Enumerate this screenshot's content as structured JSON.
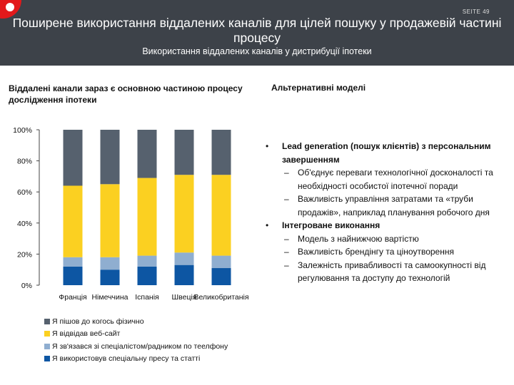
{
  "header": {
    "page_label": "SEITE 49",
    "title": "Поширене використання віддалених каналів для цілей пошуку у продажевій частині процесу",
    "subtitle": "Використання віддалених каналів у дистрибуції іпотеки"
  },
  "left_heading": "Віддалені канали зараз є основною частиною процесу дослідження іпотеки",
  "right_heading": "Альтернативні моделі",
  "colors": {
    "header_bg": "#3d4249",
    "logo": "#e2191b",
    "physical": "#56616e",
    "website": "#fbd021",
    "phone": "#8faed0",
    "press": "#0d56a3"
  },
  "chart_data": {
    "type": "bar",
    "stacked": true,
    "categories": [
      "Франція",
      "Німеччина",
      "Іспанія",
      "Швеція",
      "Великобританія"
    ],
    "yticks": [
      "0%",
      "20%",
      "40%",
      "60%",
      "80%",
      "100%"
    ],
    "ylim": [
      0,
      100
    ],
    "grid": false,
    "legend_position": "bottom-left",
    "series": [
      {
        "name": "Я використовув спеціальну пресу та статті",
        "color": "#0d56a3",
        "values": [
          12,
          10,
          12,
          13,
          11
        ]
      },
      {
        "name": "Я зв'язався зі спеціалістом/радником по теелфону",
        "color": "#8faed0",
        "values": [
          6,
          8,
          7,
          8,
          8
        ]
      },
      {
        "name": "Я відвідав веб-сайт",
        "color": "#fbd021",
        "values": [
          46,
          47,
          50,
          50,
          52
        ]
      },
      {
        "name": "Я пішов до когось фізично",
        "color": "#56616e",
        "values": [
          36,
          35,
          31,
          29,
          29
        ]
      }
    ],
    "legend_order": [
      3,
      2,
      1,
      0
    ]
  },
  "bullets": [
    {
      "title": "Lead generation (пошук клієнтів) з персональним завершенням",
      "subs": [
        "Об'єднує переваги технологічної досконалості та необхідності особистої іпотечної поради",
        "Важливість управління затратами та «труби продажів», наприклад планування робочого дня"
      ]
    },
    {
      "title": "Інтегроване виконання",
      "subs": [
        "Модель з найнижчою вартістю",
        "Важливість брендінгу та ціноутворення",
        "Залежність привабливості та самоокупності від регулювання та доступу до технологій"
      ]
    }
  ],
  "glyphs": {
    "bullet": "•",
    "dash": "–"
  }
}
